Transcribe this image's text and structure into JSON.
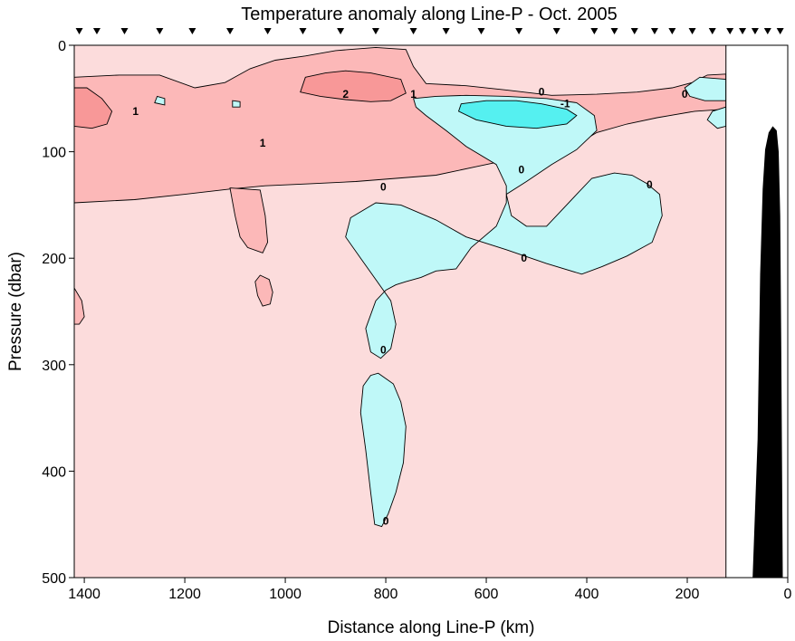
{
  "chart_data": {
    "type": "heatmap",
    "title": "Temperature anomaly along Line-P - Oct. 2005",
    "xlabel": "Distance along Line-P (km)",
    "ylabel": "Pressure (dbar)",
    "xlim": [
      1420,
      0
    ],
    "ylim": [
      0,
      500
    ],
    "x_ticks": [
      1400,
      1200,
      1000,
      800,
      600,
      400,
      200,
      0
    ],
    "y_ticks": [
      0,
      100,
      200,
      300,
      400,
      500
    ],
    "data_right_limit_km": 123,
    "contour_levels": [
      -1,
      0,
      1,
      2
    ],
    "colors": {
      "below_minus1": "#55f0f0",
      "minus1_to_0": "#bff8f8",
      "0_to_1": "#fcdcdc",
      "1_to_2": "#fcb8b8",
      "above_2": "#f89898",
      "bathymetry": "#000000"
    },
    "station_km": [
      1410,
      1375,
      1320,
      1250,
      1185,
      1110,
      1035,
      965,
      890,
      820,
      745,
      680,
      610,
      535,
      460,
      385,
      345,
      305,
      265,
      230,
      190,
      150,
      115,
      90,
      65,
      40,
      15
    ],
    "contour_labels": [
      {
        "text": "2",
        "x": 880,
        "y": 46
      },
      {
        "text": "1",
        "x": 745,
        "y": 46
      },
      {
        "text": "0",
        "x": 490,
        "y": 44
      },
      {
        "text": "-1",
        "x": 443,
        "y": 55
      },
      {
        "text": "0",
        "x": 205,
        "y": 46
      },
      {
        "text": "1",
        "x": 1298,
        "y": 62
      },
      {
        "text": "1",
        "x": 1045,
        "y": 92
      },
      {
        "text": "0",
        "x": 805,
        "y": 133
      },
      {
        "text": "0",
        "x": 530,
        "y": 117
      },
      {
        "text": "0",
        "x": 275,
        "y": 131
      },
      {
        "text": "0",
        "x": 525,
        "y": 200
      },
      {
        "text": "0",
        "x": 805,
        "y": 286
      },
      {
        "text": "0",
        "x": 800,
        "y": 447
      }
    ],
    "regions": [
      {
        "name": "warm-anomaly-upper",
        "level": "1_to_2",
        "points": [
          [
            1420,
            30
          ],
          [
            1330,
            28
          ],
          [
            1250,
            28
          ],
          [
            1180,
            40
          ],
          [
            1120,
            35
          ],
          [
            1070,
            22
          ],
          [
            1020,
            14
          ],
          [
            960,
            10
          ],
          [
            900,
            5
          ],
          [
            820,
            2
          ],
          [
            760,
            4
          ],
          [
            745,
            20
          ],
          [
            720,
            36
          ],
          [
            640,
            38
          ],
          [
            560,
            42
          ],
          [
            470,
            47
          ],
          [
            380,
            46
          ],
          [
            300,
            44
          ],
          [
            230,
            40
          ],
          [
            190,
            35
          ],
          [
            160,
            28
          ],
          [
            123,
            27
          ],
          [
            123,
            60
          ],
          [
            185,
            62
          ],
          [
            260,
            68
          ],
          [
            320,
            74
          ],
          [
            380,
            82
          ],
          [
            430,
            96
          ],
          [
            540,
            106
          ],
          [
            620,
            114
          ],
          [
            700,
            122
          ],
          [
            780,
            125
          ],
          [
            860,
            128
          ],
          [
            950,
            130
          ],
          [
            1040,
            132
          ],
          [
            1110,
            135
          ],
          [
            1200,
            140
          ],
          [
            1300,
            145
          ],
          [
            1420,
            148
          ]
        ]
      },
      {
        "name": "warm-anomaly-tongue-a",
        "level": "1_to_2",
        "points": [
          [
            1110,
            134
          ],
          [
            1100,
            160
          ],
          [
            1090,
            180
          ],
          [
            1075,
            190
          ],
          [
            1045,
            195
          ],
          [
            1035,
            185
          ],
          [
            1040,
            160
          ],
          [
            1050,
            136
          ]
        ]
      },
      {
        "name": "warm-anomaly-tongue-b",
        "level": "1_to_2",
        "points": [
          [
            1060,
            222
          ],
          [
            1055,
            235
          ],
          [
            1045,
            245
          ],
          [
            1030,
            243
          ],
          [
            1025,
            232
          ],
          [
            1032,
            220
          ],
          [
            1050,
            216
          ]
        ]
      },
      {
        "name": "warm-anomaly-edge",
        "level": "1_to_2",
        "points": [
          [
            1420,
            228
          ],
          [
            1405,
            240
          ],
          [
            1400,
            255
          ],
          [
            1410,
            262
          ],
          [
            1420,
            262
          ]
        ]
      },
      {
        "name": "warm-core-east",
        "level": "above_2",
        "points": [
          [
            960,
            30
          ],
          [
            920,
            26
          ],
          [
            880,
            24
          ],
          [
            830,
            26
          ],
          [
            770,
            32
          ],
          [
            760,
            45
          ],
          [
            790,
            52
          ],
          [
            830,
            53
          ],
          [
            880,
            51
          ],
          [
            930,
            48
          ],
          [
            970,
            44
          ]
        ]
      },
      {
        "name": "warm-core-west",
        "level": "above_2",
        "points": [
          [
            1420,
            40
          ],
          [
            1395,
            40
          ],
          [
            1365,
            50
          ],
          [
            1345,
            62
          ],
          [
            1355,
            74
          ],
          [
            1385,
            78
          ],
          [
            1420,
            76
          ]
        ]
      },
      {
        "name": "cold-main",
        "level": "minus1_to_0",
        "points": [
          [
            745,
            50
          ],
          [
            700,
            48
          ],
          [
            640,
            47
          ],
          [
            560,
            48
          ],
          [
            480,
            50
          ],
          [
            420,
            54
          ],
          [
            385,
            66
          ],
          [
            380,
            80
          ],
          [
            420,
            98
          ],
          [
            470,
            112
          ],
          [
            520,
            128
          ],
          [
            560,
            140
          ],
          [
            550,
            160
          ],
          [
            520,
            170
          ],
          [
            480,
            170
          ],
          [
            460,
            160
          ],
          [
            420,
            140
          ],
          [
            390,
            125
          ],
          [
            345,
            120
          ],
          [
            310,
            122
          ],
          [
            280,
            130
          ],
          [
            255,
            140
          ],
          [
            250,
            160
          ],
          [
            270,
            185
          ],
          [
            320,
            198
          ],
          [
            370,
            208
          ],
          [
            410,
            215
          ],
          [
            480,
            205
          ],
          [
            560,
            192
          ],
          [
            640,
            180
          ],
          [
            700,
            164
          ],
          [
            770,
            150
          ],
          [
            820,
            148
          ],
          [
            870,
            162
          ],
          [
            880,
            180
          ],
          [
            850,
            200
          ],
          [
            820,
            220
          ],
          [
            790,
            240
          ],
          [
            780,
            262
          ],
          [
            790,
            285
          ],
          [
            810,
            294
          ],
          [
            830,
            288
          ],
          [
            840,
            266
          ],
          [
            820,
            240
          ],
          [
            800,
            230
          ],
          [
            780,
            225
          ],
          [
            760,
            222
          ],
          [
            730,
            218
          ],
          [
            700,
            212
          ],
          [
            660,
            210
          ],
          [
            630,
            190
          ],
          [
            580,
            170
          ],
          [
            560,
            148
          ],
          [
            560,
            132
          ],
          [
            580,
            112
          ],
          [
            640,
            95
          ],
          [
            680,
            80
          ],
          [
            720,
            66
          ],
          [
            740,
            58
          ]
        ]
      },
      {
        "name": "cold-lens-deep",
        "level": "minus1_to_0",
        "points": [
          [
            815,
            308
          ],
          [
            785,
            318
          ],
          [
            770,
            335
          ],
          [
            760,
            358
          ],
          [
            765,
            392
          ],
          [
            780,
            420
          ],
          [
            795,
            440
          ],
          [
            808,
            452
          ],
          [
            822,
            450
          ],
          [
            830,
            420
          ],
          [
            840,
            380
          ],
          [
            850,
            345
          ],
          [
            845,
            320
          ],
          [
            830,
            310
          ]
        ]
      },
      {
        "name": "cold-core",
        "level": "below_minus1",
        "points": [
          [
            650,
            55
          ],
          [
            600,
            52
          ],
          [
            540,
            52
          ],
          [
            490,
            55
          ],
          [
            440,
            60
          ],
          [
            420,
            66
          ],
          [
            440,
            74
          ],
          [
            500,
            78
          ],
          [
            560,
            76
          ],
          [
            620,
            70
          ],
          [
            655,
            62
          ]
        ]
      },
      {
        "name": "cold-east-patch",
        "level": "minus1_to_0",
        "points": [
          [
            123,
            32
          ],
          [
            175,
            30
          ],
          [
            205,
            40
          ],
          [
            195,
            48
          ],
          [
            165,
            52
          ],
          [
            123,
            52
          ]
        ]
      },
      {
        "name": "cold-east-patch-b",
        "level": "minus1_to_0",
        "points": [
          [
            123,
            58
          ],
          [
            150,
            62
          ],
          [
            160,
            70
          ],
          [
            140,
            78
          ],
          [
            123,
            76
          ]
        ]
      },
      {
        "name": "cold-speck-a",
        "level": "minus1_to_0",
        "points": [
          [
            1255,
            48
          ],
          [
            1240,
            50
          ],
          [
            1240,
            56
          ],
          [
            1260,
            54
          ]
        ]
      },
      {
        "name": "cold-speck-b",
        "level": "minus1_to_0",
        "points": [
          [
            1105,
            52
          ],
          [
            1090,
            53
          ],
          [
            1090,
            58
          ],
          [
            1105,
            58
          ]
        ]
      }
    ],
    "bathymetry": [
      [
        70,
        500
      ],
      [
        60,
        370
      ],
      [
        55,
        215
      ],
      [
        50,
        135
      ],
      [
        45,
        98
      ],
      [
        38,
        82
      ],
      [
        30,
        76
      ],
      [
        22,
        80
      ],
      [
        18,
        100
      ],
      [
        15,
        160
      ],
      [
        13,
        280
      ],
      [
        10,
        500
      ]
    ]
  }
}
